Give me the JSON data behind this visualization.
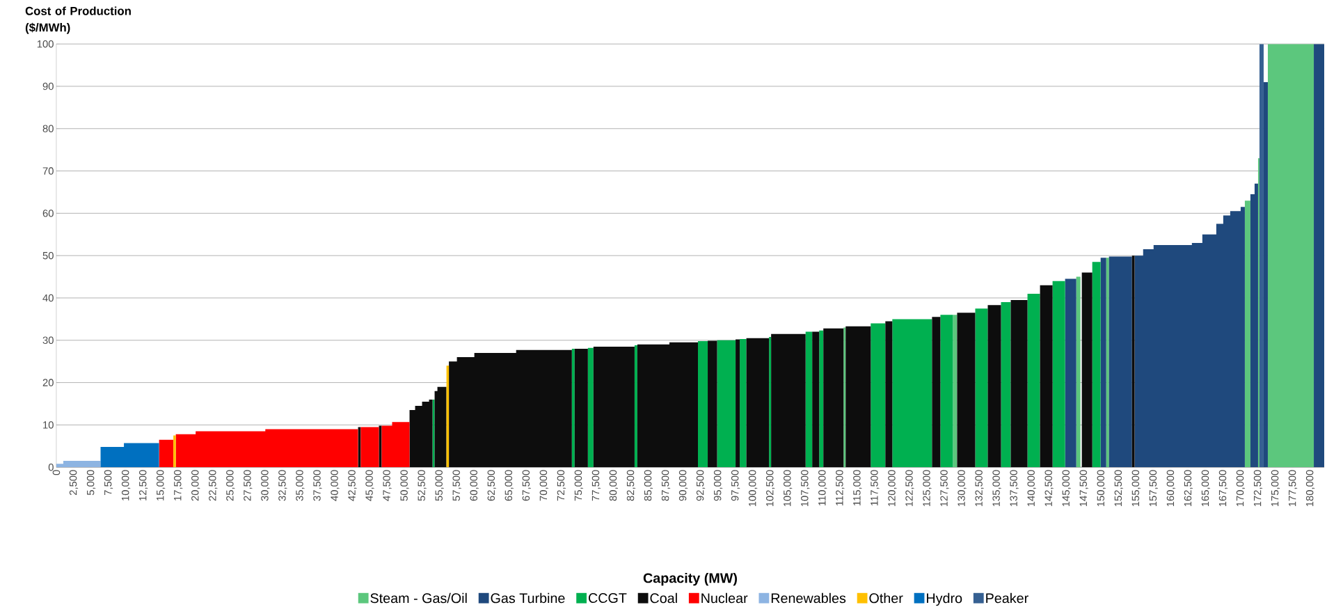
{
  "chart_data": {
    "type": "area",
    "xlabel": "Capacity (MW)",
    "ylabel": "Cost of Production ($/MWh)",
    "xlim": [
      0,
      182000
    ],
    "ylim": [
      0,
      100
    ],
    "xticks": [
      0,
      {
        "value": 2500,
        "label": "2,500"
      },
      {
        "value": 5000,
        "label": "5,000"
      },
      {
        "value": 7500,
        "label": "7,500"
      },
      {
        "value": 10000,
        "label": "10,000"
      },
      {
        "value": 12500,
        "label": "12,500"
      },
      {
        "value": 15000,
        "label": "15,000"
      },
      {
        "value": 17500,
        "label": "17,500"
      },
      {
        "value": 20000,
        "label": "20,000"
      },
      {
        "value": 22500,
        "label": "22,500"
      },
      {
        "value": 25000,
        "label": "25,000"
      },
      {
        "value": 27500,
        "label": "27,500"
      },
      {
        "value": 30000,
        "label": "30,000"
      },
      {
        "value": 32500,
        "label": "32,500"
      },
      {
        "value": 35000,
        "label": "35,000"
      },
      {
        "value": 37500,
        "label": "37,500"
      },
      {
        "value": 40000,
        "label": "40,000"
      },
      {
        "value": 42500,
        "label": "42,500"
      },
      {
        "value": 45000,
        "label": "45,000"
      },
      {
        "value": 47500,
        "label": "47,500"
      },
      {
        "value": 50000,
        "label": "50,000"
      },
      {
        "value": 52500,
        "label": "52,500"
      },
      {
        "value": 55000,
        "label": "55,000"
      },
      {
        "value": 57500,
        "label": "57,500"
      },
      {
        "value": 60000,
        "label": "60,000"
      },
      {
        "value": 62500,
        "label": "62,500"
      },
      {
        "value": 65000,
        "label": "65,000"
      },
      {
        "value": 67500,
        "label": "67,500"
      },
      {
        "value": 70000,
        "label": "70,000"
      },
      {
        "value": 72500,
        "label": "72,500"
      },
      {
        "value": 75000,
        "label": "75,000"
      },
      {
        "value": 77500,
        "label": "77,500"
      },
      {
        "value": 80000,
        "label": "80,000"
      },
      {
        "value": 82500,
        "label": "82,500"
      },
      {
        "value": 85000,
        "label": "85,000"
      },
      {
        "value": 87500,
        "label": "87,500"
      },
      {
        "value": 90000,
        "label": "90,000"
      },
      {
        "value": 92500,
        "label": "92,500"
      },
      {
        "value": 95000,
        "label": "95,000"
      },
      {
        "value": 97500,
        "label": "97,500"
      },
      {
        "value": 100000,
        "label": "100,000"
      },
      {
        "value": 102500,
        "label": "102,500"
      },
      {
        "value": 105000,
        "label": "105,000"
      },
      {
        "value": 107500,
        "label": "107,500"
      },
      {
        "value": 110000,
        "label": "110,000"
      },
      {
        "value": 112500,
        "label": "112,500"
      },
      {
        "value": 115000,
        "label": "115,000"
      },
      {
        "value": 117500,
        "label": "117,500"
      },
      {
        "value": 120000,
        "label": "120,000"
      },
      {
        "value": 122500,
        "label": "122,500"
      },
      {
        "value": 125000,
        "label": "125,000"
      },
      {
        "value": 127500,
        "label": "127,500"
      },
      {
        "value": 130000,
        "label": "130,000"
      },
      {
        "value": 132500,
        "label": "132,500"
      },
      {
        "value": 135000,
        "label": "135,000"
      },
      {
        "value": 137500,
        "label": "137,500"
      },
      {
        "value": 140000,
        "label": "140,000"
      },
      {
        "value": 142500,
        "label": "142,500"
      },
      {
        "value": 145000,
        "label": "145,000"
      },
      {
        "value": 147500,
        "label": "147,500"
      },
      {
        "value": 150000,
        "label": "150,000"
      },
      {
        "value": 152500,
        "label": "152,500"
      },
      {
        "value": 155000,
        "label": "155,000"
      },
      {
        "value": 157500,
        "label": "157,500"
      },
      {
        "value": 160000,
        "label": "160,000"
      },
      {
        "value": 162500,
        "label": "162,500"
      },
      {
        "value": 165000,
        "label": "165,000"
      },
      {
        "value": 167500,
        "label": "167,500"
      },
      {
        "value": 170000,
        "label": "170,000"
      },
      {
        "value": 172500,
        "label": "172,500"
      },
      {
        "value": 175000,
        "label": "175,000"
      },
      {
        "value": 177500,
        "label": "177,500"
      },
      {
        "value": 180000,
        "label": "180,000"
      }
    ],
    "yticks": [
      0,
      10,
      20,
      30,
      40,
      50,
      60,
      70,
      80,
      90,
      100
    ],
    "grid": "y",
    "legend": "bottom",
    "series": [
      {
        "name": "Steam - Gas/Oil",
        "color": "#5cc77d",
        "x": [
          113000,
          113000,
          113300,
          113300,
          128700,
          128700,
          129300,
          129300,
          146400,
          146400,
          147000,
          147000,
          150700,
          150700,
          151100,
          151100,
          170600,
          170600,
          171400,
          171400,
          172500,
          172500,
          172700,
          172700,
          173900,
          173900,
          180500,
          180500
        ],
        "values": [
          0,
          33,
          33,
          0,
          0,
          36,
          36,
          0,
          0,
          45,
          45,
          0,
          0,
          49.5,
          49.5,
          0,
          0,
          63,
          63,
          0,
          0,
          73,
          73,
          0,
          0,
          100,
          100,
          0
        ]
      },
      {
        "name": "Gas Turbine",
        "color": "#1f497d",
        "x": [
          144800,
          144800,
          146400,
          146400,
          149900,
          149900,
          150700,
          150700,
          151100,
          151100,
          154400,
          154400,
          154800,
          154800,
          156000,
          156000,
          157500,
          157500,
          163000,
          163000,
          164500,
          164500,
          166500,
          166500,
          167500,
          167500,
          168500,
          168500,
          170000,
          170000,
          170600,
          170600,
          171400,
          171400,
          172000,
          172000,
          172500,
          172500,
          173300,
          173300,
          173900,
          173900,
          180500,
          180500,
          182000,
          182000
        ],
        "values": [
          0,
          44.5,
          44.5,
          0,
          0,
          49.5,
          49.5,
          0,
          0,
          49.8,
          49.8,
          0,
          0,
          50,
          50,
          51.5,
          51.5,
          52.5,
          52.5,
          53,
          53,
          55,
          55,
          57.5,
          57.5,
          59.5,
          59.5,
          60.5,
          60.5,
          61.5,
          61.5,
          0,
          0,
          64.5,
          64.5,
          67,
          67,
          0,
          0,
          91,
          91,
          0,
          0,
          100,
          100,
          0
        ]
      },
      {
        "name": "CCGT",
        "color": "#00b050",
        "x": [
          54000,
          54000,
          54300,
          54300,
          74000,
          74000,
          74400,
          74400,
          76300,
          76300,
          77100,
          77100,
          83000,
          83000,
          83400,
          83400,
          92100,
          92100,
          93500,
          93500,
          94850,
          94850,
          97500,
          97500,
          98100,
          98100,
          99050,
          99050,
          102300,
          102300,
          102600,
          102600,
          107550,
          107550,
          108500,
          108500,
          109500,
          109500,
          110100,
          110100,
          116900,
          116900,
          119000,
          119000,
          120000,
          120000,
          125700,
          125700,
          126900,
          126900,
          128700,
          128700,
          131900,
          131900,
          133700,
          133700,
          135600,
          135600,
          137000,
          137000,
          139400,
          139400,
          141200,
          141200,
          143000,
          143000,
          144800,
          144800,
          148700,
          148700,
          149900,
          149900
        ],
        "values": [
          0,
          16,
          16,
          0,
          0,
          28,
          28,
          0,
          0,
          28.2,
          28.2,
          0,
          0,
          28.8,
          28.8,
          0,
          0,
          29.8,
          29.8,
          0,
          0,
          30,
          30,
          0,
          0,
          30.3,
          30.3,
          0,
          0,
          30.8,
          30.8,
          0,
          0,
          32,
          32,
          0,
          0,
          32.3,
          32.3,
          0,
          0,
          34,
          34,
          0,
          0,
          35,
          35,
          0,
          0,
          36,
          36,
          0,
          0,
          37.5,
          37.5,
          0,
          0,
          39,
          39,
          0,
          0,
          41,
          41,
          0,
          0,
          44,
          44,
          0,
          0,
          48.5,
          48.5,
          0
        ]
      },
      {
        "name": "Coal",
        "color": "#0d0d0d",
        "x": [
          43300,
          43300,
          43700,
          43700,
          46300,
          46300,
          46700,
          46700,
          50700,
          50700,
          51500,
          51500,
          52500,
          52500,
          53500,
          53500,
          54000,
          54000,
          54300,
          54300,
          54700,
          54700,
          56000,
          56000,
          56350,
          56350,
          57500,
          57500,
          60000,
          60000,
          66000,
          66000,
          74000,
          74000,
          74400,
          74400,
          76300,
          76300,
          77100,
          77100,
          83000,
          83000,
          83400,
          83400,
          88000,
          88000,
          92100,
          92100,
          93500,
          93500,
          94850,
          94850,
          97500,
          97500,
          98100,
          98100,
          99050,
          99050,
          102300,
          102300,
          102600,
          102600,
          107550,
          107550,
          108500,
          108500,
          109500,
          109500,
          110100,
          110100,
          113000,
          113000,
          113300,
          113300,
          116900,
          116900,
          119000,
          119000,
          120000,
          120000,
          125700,
          125700,
          126900,
          126900,
          129300,
          129300,
          131900,
          131900,
          133700,
          133700,
          135600,
          135600,
          137000,
          137000,
          139400,
          139400,
          141200,
          141200,
          143000,
          143000,
          147200,
          147200,
          148700,
          148700,
          154400,
          154400,
          154800,
          154800
        ],
        "values": [
          0,
          9.5,
          9.5,
          0,
          0,
          9.8,
          9.8,
          0,
          0,
          13.5,
          13.5,
          14.5,
          14.5,
          15.5,
          15.5,
          16,
          16,
          0,
          0,
          18,
          18,
          19,
          19,
          0,
          0,
          25,
          25,
          26,
          26,
          27,
          27,
          27.7,
          27.7,
          0,
          0,
          28,
          28,
          0,
          0,
          28.5,
          28.5,
          0,
          0,
          29,
          29,
          29.5,
          29.5,
          0,
          0,
          29.9,
          29.9,
          0,
          0,
          30.2,
          30.2,
          0,
          0,
          30.5,
          30.5,
          0,
          0,
          31.5,
          31.5,
          0,
          0,
          32,
          32,
          0,
          0,
          32.8,
          32.8,
          0,
          0,
          33.3,
          33.3,
          0,
          0,
          34.5,
          34.5,
          0,
          0,
          35.5,
          35.5,
          0,
          0,
          36.5,
          36.5,
          0,
          0,
          38.3,
          38.3,
          0,
          0,
          39.5,
          39.5,
          0,
          0,
          43,
          43,
          0,
          0,
          46,
          46,
          0,
          0,
          50,
          50,
          0
        ]
      },
      {
        "name": "Nuclear",
        "color": "#ff0000",
        "x": [
          14750,
          14750,
          16800,
          16800,
          17150,
          17150,
          20000,
          20000,
          30000,
          30000,
          43300,
          43300,
          43700,
          43700,
          46300,
          46300,
          46700,
          46700,
          48200,
          48200,
          50700,
          50700
        ],
        "values": [
          0,
          6.5,
          6.5,
          0,
          0,
          7.8,
          7.8,
          8.5,
          8.5,
          9,
          9,
          0,
          0,
          9.5,
          9.5,
          0,
          0,
          9.8,
          9.8,
          10.7,
          10.7,
          0
        ]
      },
      {
        "name": "Renewables",
        "color": "#8db4e2",
        "x": [
          0,
          0,
          1000,
          1000,
          6350,
          6350
        ],
        "values": [
          0,
          0.8,
          0.8,
          1.5,
          1.5,
          0
        ]
      },
      {
        "name": "Other",
        "color": "#ffc000",
        "x": [
          16800,
          16800,
          17150,
          17150,
          56000,
          56000,
          56350,
          56350
        ],
        "values": [
          0,
          7.5,
          7.5,
          0,
          0,
          24,
          24,
          0
        ]
      },
      {
        "name": "Hydro",
        "color": "#0070c0",
        "x": [
          6350,
          6350,
          9700,
          9700,
          14750,
          14750
        ],
        "values": [
          0,
          4.8,
          4.8,
          5.7,
          5.7,
          0
        ]
      },
      {
        "name": "Peaker",
        "color": "#366092",
        "x": [
          172700,
          172700,
          173300,
          173300
        ],
        "values": [
          0,
          100,
          100,
          0
        ]
      }
    ]
  }
}
